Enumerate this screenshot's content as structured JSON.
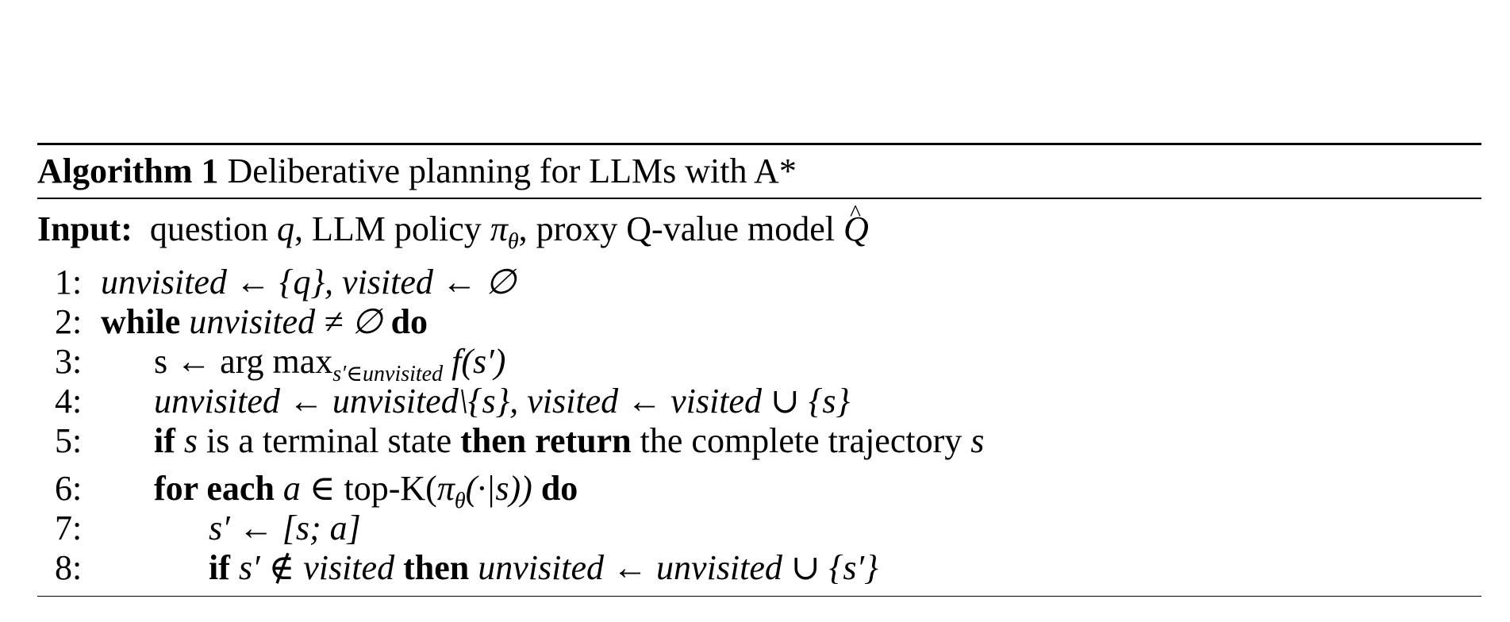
{
  "caption": {
    "label": "Algorithm 1",
    "title": "Deliberative planning for LLMs with A*"
  },
  "input": {
    "label": "Input:",
    "text_question": "question",
    "q": "q",
    "text_llm": ", LLM policy",
    "pi": "π",
    "theta": "θ",
    "text_proxy": ", proxy Q-value model",
    "qhat": "Q"
  },
  "lines": [
    {
      "num": "1:",
      "math": "unvisited ← {q}, visited ← ∅"
    },
    {
      "num": "2:",
      "kw_while": "while",
      "math": "unvisited ≠ ∅",
      "kw_do": "do"
    },
    {
      "num": "3:",
      "lhs": "s ← arg max",
      "sub": "s′∈unvisited",
      "rhs": "f(s′)"
    },
    {
      "num": "4:",
      "math": "unvisited ← unvisited\\{s}, visited ← visited ∪ {s}"
    },
    {
      "num": "5:",
      "kw_if": "if",
      "s": "s",
      "text1": "is a terminal state",
      "kw_then_return": "then return",
      "text2": "the complete trajectory",
      "s2": "s"
    },
    {
      "num": "6:",
      "kw_for_each": "for each",
      "a_in": "a ∈",
      "topk": "top-K(",
      "pi": "π",
      "theta": "θ",
      "rest": "(·|s))",
      "kw_do": "do"
    },
    {
      "num": "7:",
      "math": "s′ ← [s; a]"
    },
    {
      "num": "8:",
      "kw_if": "if",
      "cond": "s′ ∉ visited",
      "kw_then": "then",
      "math": "unvisited ← unvisited ∪ {s′}"
    }
  ]
}
